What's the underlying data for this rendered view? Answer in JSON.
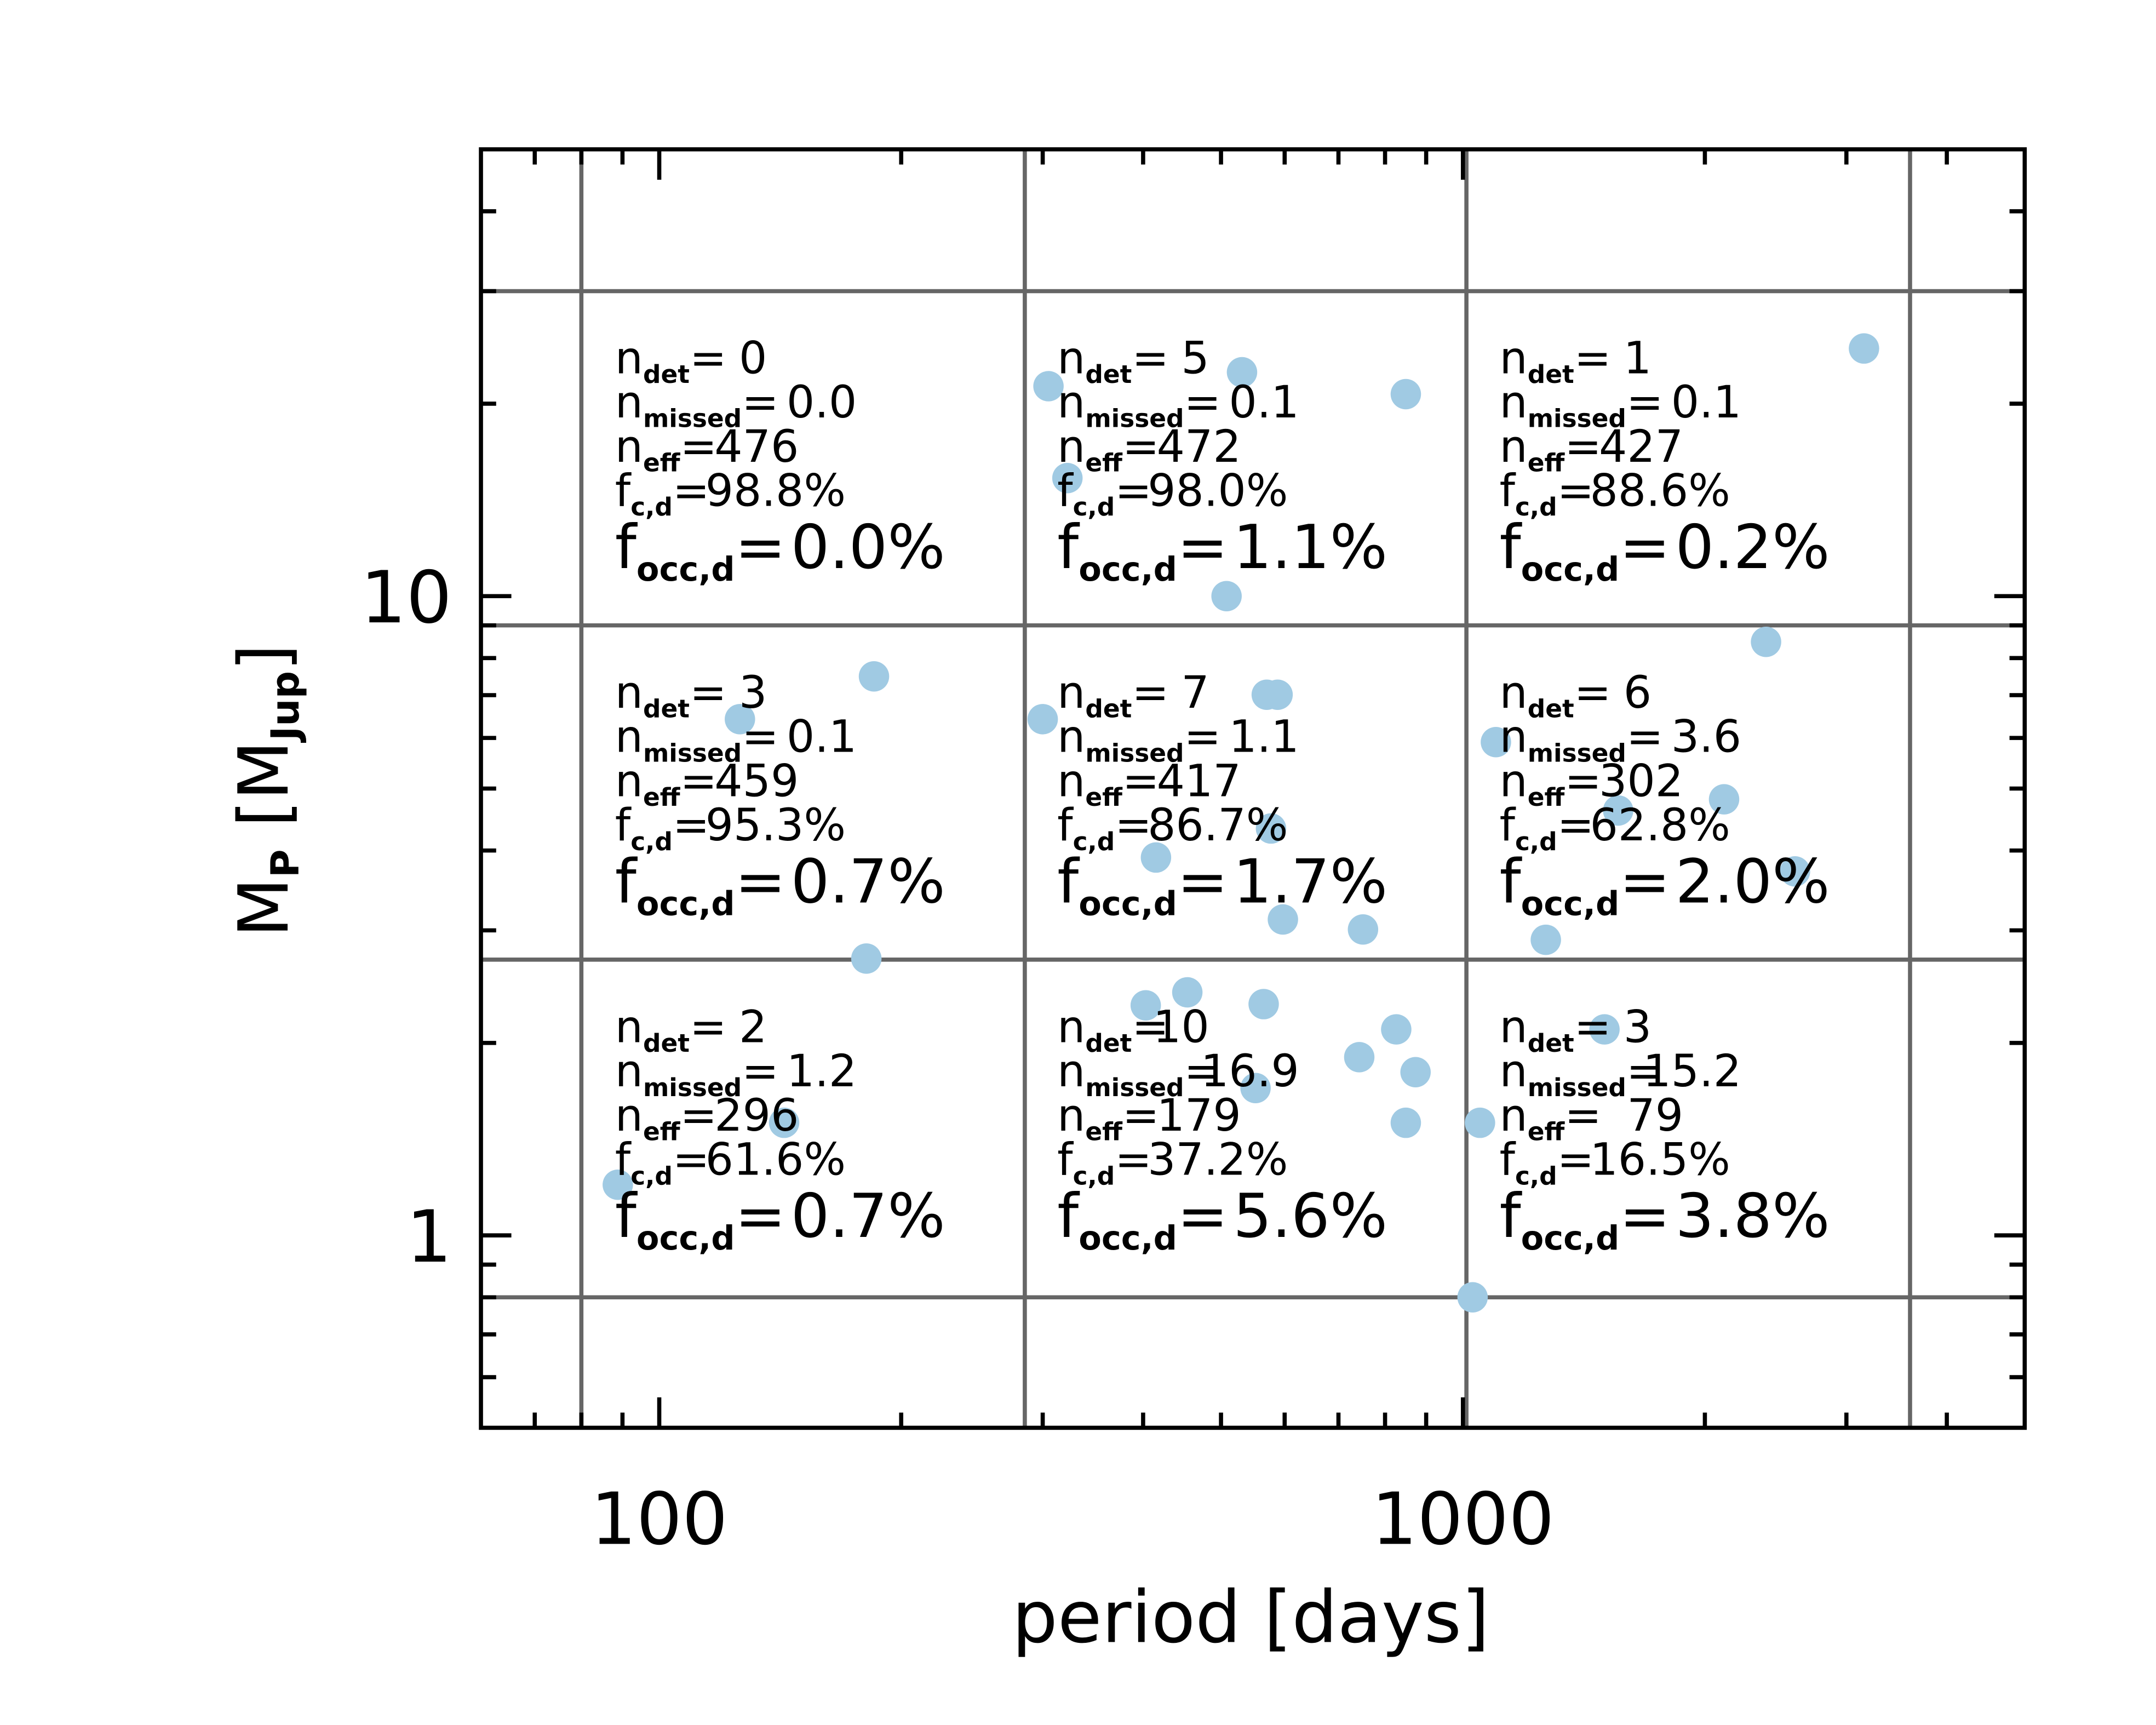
{
  "chart_data": {
    "type": "scatter",
    "xlabel": "period [days]",
    "ylabel_parts": [
      "M",
      "P",
      "[M",
      "Jup",
      "]"
    ],
    "xlog": true,
    "ylog": true,
    "xlim": [
      60,
      5000
    ],
    "ylim": [
      0.5,
      50
    ],
    "xticks": [
      100,
      1000
    ],
    "yticks": [
      1,
      10
    ],
    "xminorticks": [
      70,
      80,
      90,
      200,
      300,
      400,
      500,
      600,
      700,
      800,
      900,
      2000,
      3000,
      4000
    ],
    "yminorticks": [
      0.6,
      0.7,
      0.8,
      0.9,
      2,
      3,
      4,
      5,
      6,
      7,
      8,
      9,
      20,
      30,
      40
    ],
    "x_bins": [
      80,
      285,
      1010,
      3600
    ],
    "y_bins": [
      0.8,
      2.7,
      9,
      30
    ],
    "series": [
      {
        "color": "#a0cae3",
        "x": [
          3155,
          305,
          531,
          849,
          322,
          508,
          185,
          126,
          181,
          143,
          88.8,
          300,
          570,
          588,
          577,
          415,
          597,
          751,
          2383,
          1099,
          1560,
          2113,
          2589,
          1268,
          403,
          454,
          565,
          826,
          743,
          873,
          552,
          849,
          1500,
          1050,
          1028
        ],
        "values": [
          24.4,
          21.3,
          22.4,
          20.7,
          15.3,
          10,
          7.49,
          6.42,
          2.71,
          1.5,
          1.2,
          6.42,
          7.01,
          7.01,
          4.33,
          3.9,
          3.12,
          3.01,
          8.48,
          5.91,
          4.62,
          4.81,
          3.71,
          2.9,
          2.29,
          2.4,
          2.3,
          2.1,
          1.9,
          1.8,
          1.7,
          1.5,
          2.1,
          1.5,
          0.8
        ]
      }
    ],
    "cell_labels": [
      {
        "symbol": "n",
        "sub": "det",
        "eq": "="
      },
      {
        "symbol": "n",
        "sub": "missed",
        "eq": "="
      },
      {
        "symbol": "n",
        "sub": "eff",
        "eq": "="
      },
      {
        "symbol": "f",
        "sub": "c,d",
        "eq": "="
      },
      {
        "symbol": "f",
        "sub": "occ,d",
        "eq": "="
      }
    ],
    "cells": [
      [
        "0",
        "0.0",
        "476",
        "98.8%",
        "0.0%"
      ],
      [
        "5",
        "0.1",
        "472",
        "98.0%",
        "1.1%"
      ],
      [
        "1",
        "0.1",
        "427",
        "88.6%",
        "0.2%"
      ],
      [
        "3",
        "0.1",
        "459",
        "95.3%",
        "0.7%"
      ],
      [
        "7",
        "1.1",
        "417",
        "86.7%",
        "1.7%"
      ],
      [
        "6",
        "3.6",
        "302",
        "62.8%",
        "2.0%"
      ],
      [
        "2",
        "1.2",
        "296",
        "61.6%",
        "0.7%"
      ],
      [
        "10",
        "16.9",
        "179",
        "37.2%",
        "5.6%"
      ],
      [
        "3",
        "15.2",
        "79",
        "16.5%",
        "3.8%"
      ]
    ]
  }
}
